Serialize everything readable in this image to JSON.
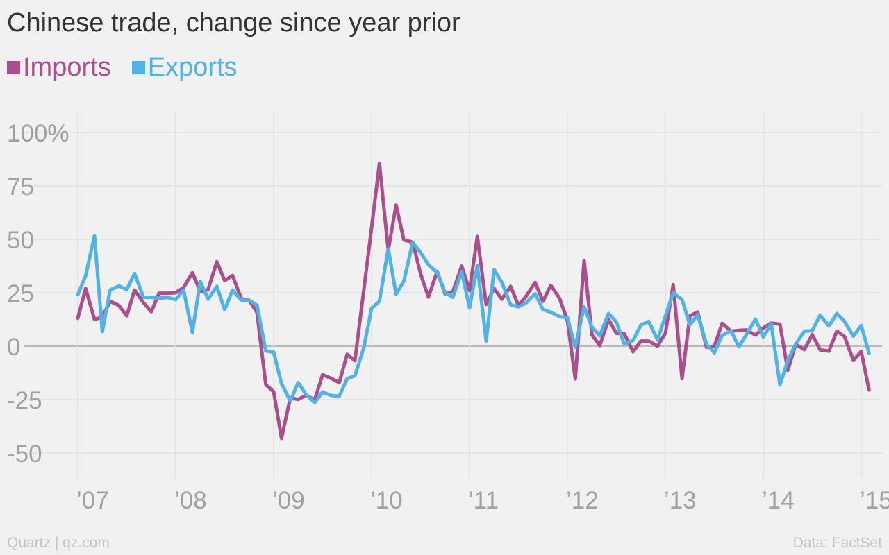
{
  "chart_data": {
    "type": "line",
    "title": "Chinese trade, change since year prior",
    "xlabel": "",
    "ylabel": "",
    "ylim": [
      -60,
      100
    ],
    "y_ticks": [
      100,
      75,
      50,
      25,
      0,
      -25,
      -50
    ],
    "y_tick_labels": [
      "100%",
      "75",
      "50",
      "25",
      "0",
      "-25",
      "-50"
    ],
    "x_ticks": [
      2007,
      2008,
      2009,
      2010,
      2011,
      2012,
      2013,
      2014,
      2015
    ],
    "x_tick_labels": [
      "’07",
      "’08",
      "’09",
      "’10",
      "’11",
      "’12",
      "’13",
      "’14",
      "’15"
    ],
    "grid": true,
    "legend_position": "top-left",
    "series": [
      {
        "name": "Imports",
        "color": "#a94f8c",
        "points": [
          [
            2007.0,
            13.1
          ],
          [
            2007.08,
            27.0
          ],
          [
            2007.17,
            12.5
          ],
          [
            2007.25,
            13.7
          ],
          [
            2007.33,
            21.0
          ],
          [
            2007.42,
            19.1
          ],
          [
            2007.5,
            14.2
          ],
          [
            2007.58,
            26.3
          ],
          [
            2007.67,
            20.4
          ],
          [
            2007.75,
            16.1
          ],
          [
            2007.83,
            24.8
          ],
          [
            2007.92,
            24.8
          ],
          [
            2008.0,
            25.0
          ],
          [
            2008.08,
            27.5
          ],
          [
            2008.17,
            34.4
          ],
          [
            2008.25,
            25.6
          ],
          [
            2008.33,
            26.4
          ],
          [
            2008.42,
            39.5
          ],
          [
            2008.5,
            30.7
          ],
          [
            2008.58,
            33.1
          ],
          [
            2008.67,
            22.2
          ],
          [
            2008.75,
            21.5
          ],
          [
            2008.83,
            15.7
          ],
          [
            2008.92,
            -18.0
          ],
          [
            2009.0,
            -21.3
          ],
          [
            2009.08,
            -43.1
          ],
          [
            2009.17,
            -24.2
          ],
          [
            2009.25,
            -24.9
          ],
          [
            2009.33,
            -23.0
          ],
          [
            2009.42,
            -25.1
          ],
          [
            2009.5,
            -13.3
          ],
          [
            2009.58,
            -14.9
          ],
          [
            2009.67,
            -17.0
          ],
          [
            2009.75,
            -3.8
          ],
          [
            2009.83,
            -6.8
          ],
          [
            2009.92,
            26.0
          ],
          [
            2010.0,
            55.3
          ],
          [
            2010.08,
            85.5
          ],
          [
            2010.17,
            45.0
          ],
          [
            2010.25,
            66.0
          ],
          [
            2010.33,
            49.7
          ],
          [
            2010.42,
            48.7
          ],
          [
            2010.5,
            34.0
          ],
          [
            2010.58,
            23.0
          ],
          [
            2010.67,
            35.0
          ],
          [
            2010.75,
            24.5
          ],
          [
            2010.83,
            25.5
          ],
          [
            2010.92,
            37.5
          ],
          [
            2011.0,
            26.0
          ],
          [
            2011.08,
            51.3
          ],
          [
            2011.17,
            19.5
          ],
          [
            2011.25,
            27.0
          ],
          [
            2011.33,
            22.0
          ],
          [
            2011.42,
            28.0
          ],
          [
            2011.5,
            19.0
          ],
          [
            2011.58,
            23.5
          ],
          [
            2011.67,
            29.8
          ],
          [
            2011.75,
            21.0
          ],
          [
            2011.83,
            28.5
          ],
          [
            2011.92,
            22.4
          ],
          [
            2012.0,
            12.0
          ],
          [
            2012.08,
            -15.3
          ],
          [
            2012.17,
            40.0
          ],
          [
            2012.25,
            5.3
          ],
          [
            2012.33,
            0.3
          ],
          [
            2012.42,
            12.5
          ],
          [
            2012.5,
            6.0
          ],
          [
            2012.58,
            5.8
          ],
          [
            2012.67,
            -2.6
          ],
          [
            2012.75,
            2.4
          ],
          [
            2012.83,
            2.4
          ],
          [
            2012.92,
            0.0
          ],
          [
            2013.0,
            6.0
          ],
          [
            2013.08,
            28.8
          ],
          [
            2013.17,
            -15.2
          ],
          [
            2013.25,
            14.2
          ],
          [
            2013.33,
            16.0
          ],
          [
            2013.42,
            -0.5
          ],
          [
            2013.5,
            0.0
          ],
          [
            2013.58,
            10.7
          ],
          [
            2013.67,
            7.0
          ],
          [
            2013.75,
            7.4
          ],
          [
            2013.83,
            7.6
          ],
          [
            2013.92,
            5.2
          ],
          [
            2014.0,
            8.5
          ],
          [
            2014.08,
            10.8
          ],
          [
            2014.17,
            10.3
          ],
          [
            2014.25,
            -11.3
          ],
          [
            2014.33,
            0.8
          ],
          [
            2014.42,
            -1.6
          ],
          [
            2014.5,
            5.5
          ],
          [
            2014.58,
            -1.7
          ],
          [
            2014.67,
            -2.3
          ],
          [
            2014.75,
            7.0
          ],
          [
            2014.83,
            4.5
          ],
          [
            2014.92,
            -6.7
          ],
          [
            2015.0,
            -2.4
          ],
          [
            2015.08,
            -20.5
          ]
        ]
      },
      {
        "name": "Exports",
        "color": "#51b2e5",
        "points": [
          [
            2007.0,
            24.1
          ],
          [
            2007.08,
            33.0
          ],
          [
            2007.17,
            51.6
          ],
          [
            2007.25,
            6.8
          ],
          [
            2007.33,
            26.3
          ],
          [
            2007.42,
            28.2
          ],
          [
            2007.5,
            26.5
          ],
          [
            2007.58,
            34.0
          ],
          [
            2007.67,
            22.9
          ],
          [
            2007.75,
            22.9
          ],
          [
            2007.83,
            22.5
          ],
          [
            2007.92,
            22.8
          ],
          [
            2008.0,
            21.8
          ],
          [
            2008.08,
            26.3
          ],
          [
            2008.17,
            6.4
          ],
          [
            2008.25,
            30.4
          ],
          [
            2008.33,
            22.0
          ],
          [
            2008.42,
            28.0
          ],
          [
            2008.5,
            17.0
          ],
          [
            2008.58,
            26.3
          ],
          [
            2008.67,
            21.5
          ],
          [
            2008.75,
            21.5
          ],
          [
            2008.83,
            19.2
          ],
          [
            2008.92,
            -2.2
          ],
          [
            2009.0,
            -2.8
          ],
          [
            2009.08,
            -17.5
          ],
          [
            2009.17,
            -25.7
          ],
          [
            2009.25,
            -17.0
          ],
          [
            2009.33,
            -22.6
          ],
          [
            2009.42,
            -26.4
          ],
          [
            2009.5,
            -21.4
          ],
          [
            2009.58,
            -23.0
          ],
          [
            2009.67,
            -23.4
          ],
          [
            2009.75,
            -15.2
          ],
          [
            2009.83,
            -13.8
          ],
          [
            2009.92,
            -0.8
          ],
          [
            2010.0,
            17.7
          ],
          [
            2010.08,
            21.0
          ],
          [
            2010.17,
            45.6
          ],
          [
            2010.25,
            24.3
          ],
          [
            2010.33,
            30.5
          ],
          [
            2010.42,
            48.5
          ],
          [
            2010.5,
            43.9
          ],
          [
            2010.58,
            38.1
          ],
          [
            2010.67,
            34.4
          ],
          [
            2010.75,
            25.1
          ],
          [
            2010.83,
            22.9
          ],
          [
            2010.92,
            34.9
          ],
          [
            2011.0,
            17.9
          ],
          [
            2011.08,
            37.7
          ],
          [
            2011.17,
            2.4
          ],
          [
            2011.25,
            35.8
          ],
          [
            2011.33,
            29.9
          ],
          [
            2011.42,
            19.4
          ],
          [
            2011.5,
            18.4
          ],
          [
            2011.58,
            20.4
          ],
          [
            2011.67,
            24.5
          ],
          [
            2011.75,
            17.1
          ],
          [
            2011.83,
            15.9
          ],
          [
            2011.92,
            13.8
          ],
          [
            2012.0,
            13.4
          ],
          [
            2012.08,
            -0.5
          ],
          [
            2012.17,
            18.4
          ],
          [
            2012.25,
            8.9
          ],
          [
            2012.33,
            4.9
          ],
          [
            2012.42,
            15.3
          ],
          [
            2012.5,
            11.3
          ],
          [
            2012.58,
            1.0
          ],
          [
            2012.67,
            2.7
          ],
          [
            2012.75,
            9.9
          ],
          [
            2012.83,
            11.6
          ],
          [
            2012.92,
            2.9
          ],
          [
            2013.0,
            14.1
          ],
          [
            2013.08,
            25.0
          ],
          [
            2013.17,
            21.8
          ],
          [
            2013.25,
            10.0
          ],
          [
            2013.33,
            14.7
          ],
          [
            2013.42,
            1.0
          ],
          [
            2013.5,
            -3.1
          ],
          [
            2013.58,
            5.1
          ],
          [
            2013.67,
            7.2
          ],
          [
            2013.75,
            -0.3
          ],
          [
            2013.83,
            5.6
          ],
          [
            2013.92,
            12.7
          ],
          [
            2014.0,
            4.3
          ],
          [
            2014.08,
            10.6
          ],
          [
            2014.17,
            -18.1
          ],
          [
            2014.25,
            -6.6
          ],
          [
            2014.33,
            0.9
          ],
          [
            2014.42,
            7.0
          ],
          [
            2014.5,
            7.2
          ],
          [
            2014.58,
            14.5
          ],
          [
            2014.67,
            9.4
          ],
          [
            2014.75,
            15.3
          ],
          [
            2014.83,
            11.6
          ],
          [
            2014.92,
            4.7
          ],
          [
            2015.0,
            9.7
          ],
          [
            2015.08,
            -3.3
          ]
        ]
      }
    ]
  },
  "footer": {
    "source_left": "Quartz | qz.com",
    "source_right": "Data: FactSet"
  }
}
